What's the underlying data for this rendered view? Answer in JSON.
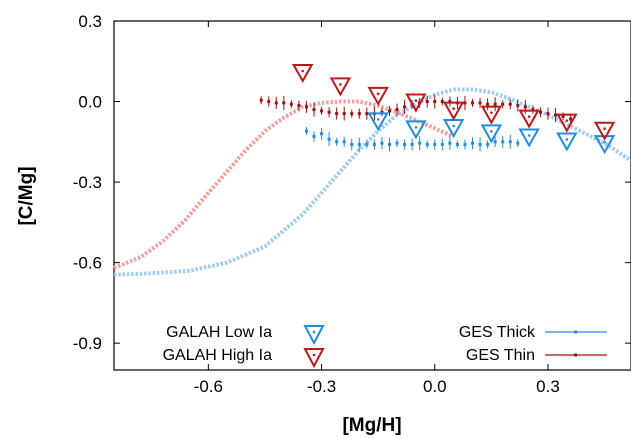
{
  "chart_data": {
    "type": "scatter",
    "xlabel": "[Mg/H]",
    "ylabel": "[C/Mg]",
    "xlim": [
      -0.85,
      0.52
    ],
    "ylim": [
      -1.0,
      0.3
    ],
    "xticks": [
      -0.6,
      -0.3,
      0.0,
      0.3
    ],
    "xtick_labels": [
      "-0.6",
      "-0.3",
      "0.0",
      "0.3"
    ],
    "yticks": [
      -0.9,
      -0.6,
      -0.3,
      0.0,
      0.3
    ],
    "ytick_labels": [
      "-0.9",
      "-0.6",
      "-0.3",
      "0.0",
      "0.3"
    ],
    "grid": false,
    "legend_placement": "bottom",
    "series": [
      {
        "name": "GALAH Low Ia",
        "marker": "triangle-down-open",
        "color": "#1f8ee0",
        "x": [
          -0.15,
          -0.05,
          0.05,
          0.15,
          0.25,
          0.35,
          0.45
        ],
        "y": [
          -0.07,
          -0.1,
          -0.095,
          -0.115,
          -0.13,
          -0.145,
          -0.155
        ]
      },
      {
        "name": "GALAH High Ia",
        "marker": "triangle-down-open",
        "color": "#c01818",
        "x": [
          -0.35,
          -0.25,
          -0.15,
          -0.05,
          0.05,
          0.15,
          0.25,
          0.35,
          0.45
        ],
        "y": [
          0.11,
          0.06,
          0.025,
          0.0,
          -0.03,
          -0.045,
          -0.06,
          -0.075,
          -0.105
        ]
      },
      {
        "name": "GES Thick",
        "marker": "dot-errorbar",
        "color": "#1f8ee0",
        "x": [
          -0.34,
          -0.32,
          -0.3,
          -0.28,
          -0.26,
          -0.24,
          -0.22,
          -0.2,
          -0.18,
          -0.16,
          -0.14,
          -0.12,
          -0.1,
          -0.08,
          -0.06,
          -0.04,
          -0.02,
          0.0,
          0.02,
          0.04,
          0.06,
          0.08,
          0.1,
          0.12,
          0.14,
          0.16,
          0.18,
          0.2,
          0.22
        ],
        "y": [
          -0.11,
          -0.13,
          -0.12,
          -0.14,
          -0.15,
          -0.15,
          -0.16,
          -0.16,
          -0.16,
          -0.16,
          -0.155,
          -0.16,
          -0.155,
          -0.16,
          -0.16,
          -0.155,
          -0.16,
          -0.16,
          -0.16,
          -0.155,
          -0.16,
          -0.16,
          -0.155,
          -0.16,
          -0.16,
          -0.15,
          -0.15,
          -0.15,
          -0.155
        ]
      },
      {
        "name": "GES Thin",
        "marker": "dot-errorbar",
        "color": "#a01010",
        "x": [
          -0.46,
          -0.44,
          -0.42,
          -0.4,
          -0.38,
          -0.36,
          -0.34,
          -0.32,
          -0.3,
          -0.28,
          -0.26,
          -0.24,
          -0.22,
          -0.2,
          -0.18,
          -0.16,
          -0.14,
          -0.12,
          -0.1,
          -0.08,
          -0.06,
          -0.04,
          -0.02,
          0.0,
          0.02,
          0.04,
          0.06,
          0.08,
          0.1,
          0.12,
          0.14,
          0.16,
          0.18,
          0.2,
          0.22,
          0.24,
          0.26,
          0.28,
          0.3,
          0.32,
          0.34,
          0.36
        ],
        "y": [
          0.005,
          0.0,
          -0.005,
          -0.005,
          -0.01,
          -0.015,
          -0.02,
          -0.03,
          -0.035,
          -0.04,
          -0.045,
          -0.045,
          -0.045,
          -0.045,
          -0.045,
          -0.045,
          -0.04,
          -0.035,
          -0.03,
          -0.02,
          -0.01,
          -0.005,
          0.0,
          0.0,
          0.0,
          0.0,
          -0.005,
          -0.005,
          -0.005,
          -0.005,
          -0.01,
          -0.01,
          -0.01,
          -0.01,
          -0.015,
          -0.02,
          -0.03,
          -0.04,
          -0.045,
          -0.05,
          -0.055,
          -0.065
        ]
      },
      {
        "marker": "dotted-curve",
        "color": "#9fcaf2",
        "x": [
          -0.85,
          -0.75,
          -0.65,
          -0.55,
          -0.45,
          -0.35,
          -0.3,
          -0.25,
          -0.2,
          -0.15,
          -0.1,
          -0.05,
          0.0,
          0.05,
          0.1,
          0.15,
          0.2,
          0.25,
          0.3,
          0.35,
          0.4,
          0.45,
          0.52
        ],
        "y": [
          -0.645,
          -0.64,
          -0.63,
          -0.6,
          -0.54,
          -0.42,
          -0.34,
          -0.26,
          -0.18,
          -0.11,
          -0.05,
          -0.01,
          0.025,
          0.045,
          0.045,
          0.035,
          0.01,
          -0.02,
          -0.05,
          -0.085,
          -0.12,
          -0.155,
          -0.22
        ]
      },
      {
        "marker": "dotted-curve",
        "color": "#f2a0a0",
        "x": [
          -0.85,
          -0.78,
          -0.72,
          -0.66,
          -0.6,
          -0.55,
          -0.5,
          -0.45,
          -0.4,
          -0.35,
          -0.3,
          -0.25,
          -0.2,
          -0.15,
          -0.1,
          -0.05,
          0.0,
          0.05
        ],
        "y": [
          -0.62,
          -0.58,
          -0.52,
          -0.44,
          -0.34,
          -0.26,
          -0.18,
          -0.11,
          -0.06,
          -0.02,
          -0.005,
          0.0,
          0.0,
          -0.015,
          -0.04,
          -0.07,
          -0.1,
          -0.13
        ]
      }
    ]
  }
}
